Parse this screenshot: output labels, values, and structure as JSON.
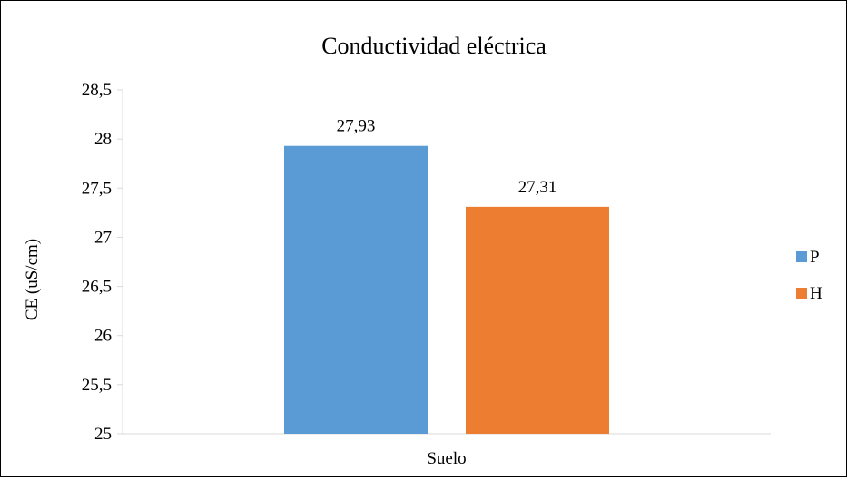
{
  "chart_data": {
    "type": "bar",
    "title": "Conductividad eléctrica",
    "ylabel": "CE (uS/cm)",
    "xlabel": "",
    "categories": [
      "Suelo"
    ],
    "series": [
      {
        "name": "P",
        "values": [
          27.93
        ],
        "label": "27,93",
        "color": "#5B9BD5"
      },
      {
        "name": "H",
        "values": [
          27.31
        ],
        "label": "27,31",
        "color": "#ED7D31"
      }
    ],
    "ylim": [
      25,
      28.5
    ],
    "yticks": [
      "25",
      "25,5",
      "26",
      "26,5",
      "27",
      "27,5",
      "28",
      "28,5"
    ],
    "grid": false,
    "legend": "right"
  }
}
